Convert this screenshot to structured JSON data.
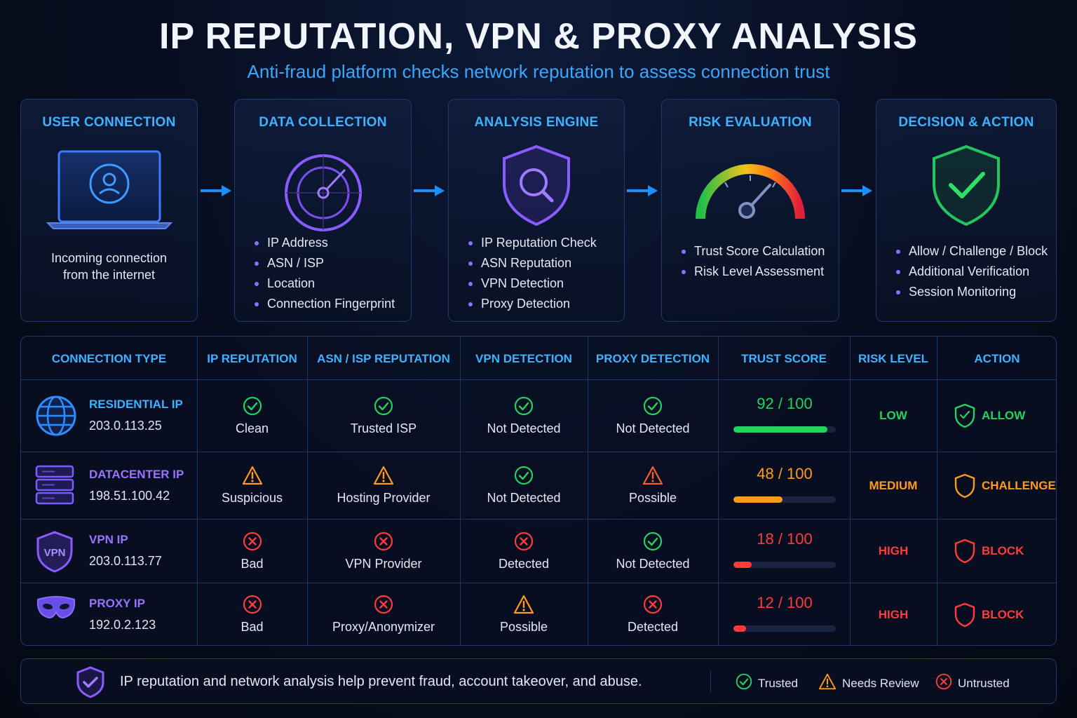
{
  "header": {
    "title": "IP REPUTATION, VPN & PROXY ANALYSIS",
    "subtitle": "Anti-fraud platform checks network reputation to assess connection trust"
  },
  "steps": [
    {
      "title": "USER CONNECTION",
      "icon": "laptop-user-icon",
      "desc": [
        "Incoming connection",
        "from the internet"
      ]
    },
    {
      "title": "DATA COLLECTION",
      "icon": "radar-icon",
      "bullets": [
        "IP Address",
        "ASN / ISP",
        "Location",
        "Connection Fingerprint"
      ]
    },
    {
      "title": "ANALYSIS ENGINE",
      "icon": "shield-search-icon",
      "bullets": [
        "IP Reputation Check",
        "ASN Reputation",
        "VPN Detection",
        "Proxy Detection"
      ]
    },
    {
      "title": "RISK EVALUATION",
      "icon": "gauge-icon",
      "bullets": [
        "Trust Score Calculation",
        "Risk Level Assessment"
      ]
    },
    {
      "title": "DECISION & ACTION",
      "icon": "shield-check-icon",
      "bullets": [
        "Allow / Challenge / Block",
        "Additional Verification",
        "Session Monitoring"
      ]
    }
  ],
  "table": {
    "headers": [
      "CONNECTION TYPE",
      "IP REPUTATION",
      "ASN / ISP REPUTATION",
      "VPN DETECTION",
      "PROXY DETECTION",
      "TRUST SCORE",
      "RISK LEVEL",
      "ACTION"
    ],
    "rows": [
      {
        "type": "RESIDENTIAL IP",
        "ip": "203.0.113.25",
        "icon": "globe-icon",
        "type_color": "#3fb2ff",
        "ip_rep": {
          "status": "ok",
          "text": "Clean"
        },
        "asn": {
          "status": "ok",
          "text": "Trusted ISP"
        },
        "vpn": {
          "status": "ok",
          "text": "Not Detected"
        },
        "proxy": {
          "status": "ok",
          "text": "Not Detected"
        },
        "score": 92,
        "score_text": "92 / 100",
        "risk": "LOW",
        "action": "ALLOW",
        "color": "#22d35e"
      },
      {
        "type": "DATACENTER IP",
        "ip": "198.51.100.42",
        "icon": "server-icon",
        "type_color": "#9a72ff",
        "ip_rep": {
          "status": "warn",
          "text": "Suspicious"
        },
        "asn": {
          "status": "warn",
          "text": "Hosting Provider"
        },
        "vpn": {
          "status": "ok",
          "text": "Not Detected"
        },
        "proxy": {
          "status": "warn-red",
          "text": "Possible"
        },
        "score": 48,
        "score_text": "48 / 100",
        "risk": "MEDIUM",
        "action": "CHALLENGE",
        "color": "#ff9a1a"
      },
      {
        "type": "VPN IP",
        "ip": "203.0.113.77",
        "icon": "vpn-shield-icon",
        "type_color": "#9a72ff",
        "ip_rep": {
          "status": "bad",
          "text": "Bad"
        },
        "asn": {
          "status": "bad",
          "text": "VPN Provider"
        },
        "vpn": {
          "status": "bad",
          "text": "Detected"
        },
        "proxy": {
          "status": "ok",
          "text": "Not Detected"
        },
        "score": 18,
        "score_text": "18 / 100",
        "risk": "HIGH",
        "action": "BLOCK",
        "color": "#ff3b3b"
      },
      {
        "type": "PROXY IP",
        "ip": "192.0.2.123",
        "icon": "mask-icon",
        "type_color": "#9a72ff",
        "ip_rep": {
          "status": "bad",
          "text": "Bad"
        },
        "asn": {
          "status": "bad",
          "text": "Proxy/Anonymizer"
        },
        "vpn": {
          "status": "warn",
          "text": "Possible"
        },
        "proxy": {
          "status": "bad",
          "text": "Detected"
        },
        "score": 12,
        "score_text": "12 / 100",
        "risk": "HIGH",
        "action": "BLOCK",
        "color": "#ff3b3b"
      }
    ],
    "vpn_badge": "VPN"
  },
  "footer": {
    "text": "IP reputation and network analysis help prevent fraud, account takeover, and abuse.",
    "legend": [
      {
        "label": "Trusted",
        "status": "ok"
      },
      {
        "label": "Needs Review",
        "status": "warn"
      },
      {
        "label": "Untrusted",
        "status": "bad"
      }
    ]
  },
  "colors": {
    "accent": "#3fb2ff",
    "purple": "#8a70ff",
    "green": "#22d35e",
    "orange": "#ff9a1a",
    "red": "#ff3b3b"
  }
}
